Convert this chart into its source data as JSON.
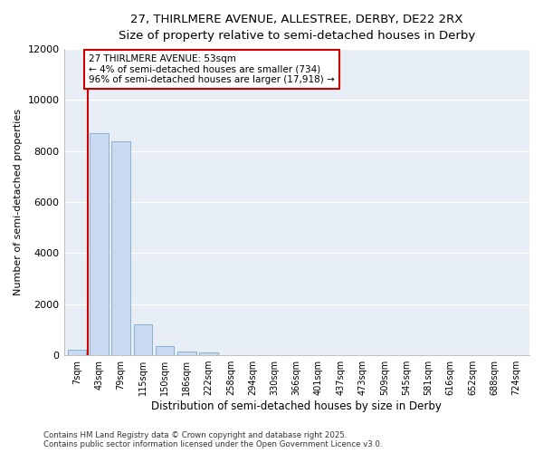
{
  "title_line1": "27, THIRLMERE AVENUE, ALLESTREE, DERBY, DE22 2RX",
  "title_line2": "Size of property relative to semi-detached houses in Derby",
  "xlabel": "Distribution of semi-detached houses by size in Derby",
  "ylabel": "Number of semi-detached properties",
  "categories": [
    "7sqm",
    "43sqm",
    "79sqm",
    "115sqm",
    "150sqm",
    "186sqm",
    "222sqm",
    "258sqm",
    "294sqm",
    "330sqm",
    "366sqm",
    "401sqm",
    "437sqm",
    "473sqm",
    "509sqm",
    "545sqm",
    "581sqm",
    "616sqm",
    "652sqm",
    "688sqm",
    "724sqm"
  ],
  "values": [
    200,
    8700,
    8400,
    1200,
    350,
    150,
    100,
    0,
    0,
    0,
    0,
    0,
    0,
    0,
    0,
    0,
    0,
    0,
    0,
    0,
    0
  ],
  "bar_color": "#c8d9f0",
  "bar_edge_color": "#7aaad0",
  "vline_x": 0.5,
  "vline_color": "#cc0000",
  "ylim": [
    0,
    12000
  ],
  "yticks": [
    0,
    2000,
    4000,
    6000,
    8000,
    10000,
    12000
  ],
  "annotation_text": "27 THIRLMERE AVENUE: 53sqm\n← 4% of semi-detached houses are smaller (734)\n96% of semi-detached houses are larger (17,918) →",
  "annotation_box_color": "#cc0000",
  "footer_line1": "Contains HM Land Registry data © Crown copyright and database right 2025.",
  "footer_line2": "Contains public sector information licensed under the Open Government Licence v3.0.",
  "background_color": "#ffffff",
  "plot_bg_color": "#e8eef5",
  "grid_color": "#ffffff"
}
